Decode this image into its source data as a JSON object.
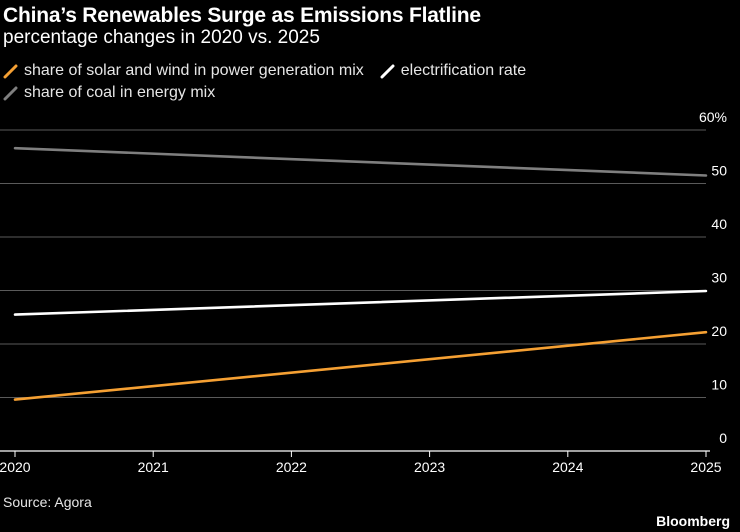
{
  "title": "China’s Renewables Surge as Emissions Flatline",
  "subtitle": "percentage changes in 2020 vs. 2025",
  "source": "Source: Agora",
  "brand": "Bloomberg",
  "colors": {
    "background": "#000000",
    "solar_wind": "#f5a033",
    "electrification": "#ffffff",
    "coal": "#7f7f7f",
    "grid": "#5a5a5a"
  },
  "chart_data": {
    "type": "line",
    "title": "China’s Renewables Surge as Emissions Flatline",
    "subtitle": "percentage changes in 2020 vs. 2025",
    "x": [
      2020,
      2021,
      2022,
      2023,
      2024,
      2025
    ],
    "x_tick_labels": [
      "2020",
      "2021",
      "2022",
      "2023",
      "2024",
      "2025"
    ],
    "y_tick_labels": [
      "0",
      "10",
      "20",
      "30",
      "40",
      "50",
      "60%"
    ],
    "ylim": [
      0,
      60
    ],
    "xlim": [
      2020,
      2025
    ],
    "grid": true,
    "y_axis_side": "right",
    "legend_position": "top-left",
    "series": [
      {
        "name": "share of solar and wind in power generation mix",
        "color": "#f5a033",
        "points": [
          [
            2020,
            9.6
          ],
          [
            2025,
            22.2
          ]
        ]
      },
      {
        "name": "electrification rate",
        "color": "#ffffff",
        "points": [
          [
            2020,
            25.5
          ],
          [
            2025,
            29.9
          ]
        ]
      },
      {
        "name": "share of coal in energy mix",
        "color": "#7f7f7f",
        "points": [
          [
            2020,
            56.6
          ],
          [
            2025,
            51.5
          ]
        ]
      }
    ]
  }
}
